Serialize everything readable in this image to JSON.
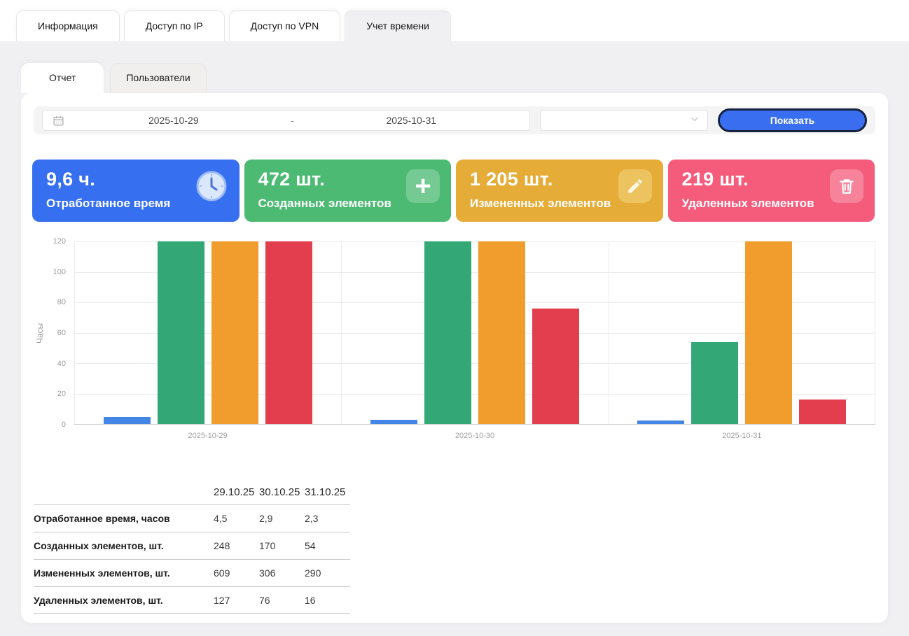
{
  "top_tabs": {
    "items": [
      {
        "label": "Информация",
        "active": false
      },
      {
        "label": "Доступ по IP",
        "active": false
      },
      {
        "label": "Доступ по VPN",
        "active": false
      },
      {
        "label": "Учет времени",
        "active": true
      }
    ]
  },
  "sub_tabs": {
    "items": [
      {
        "label": "Отчет",
        "active": true
      },
      {
        "label": "Пользователи",
        "active": false
      }
    ]
  },
  "filter": {
    "date_from": "2025-10-29",
    "separator": "-",
    "date_to": "2025-10-31",
    "select_value": "",
    "show_button": "Показать",
    "button_color": "#3a6ef0"
  },
  "cards": [
    {
      "value": "9,6 ч.",
      "label": "Отработанное время",
      "color": "#366ff0",
      "icon": "clock-icon",
      "icon_bg": ""
    },
    {
      "value": "472 шт.",
      "label": "Созданных элементов",
      "color": "#4dba74",
      "icon": "plus-icon",
      "icon_bg": "#74ca92"
    },
    {
      "value": "1 205 шт.",
      "label": "Измененных элементов",
      "color": "#e5ac37",
      "icon": "pencil-icon",
      "icon_bg": "#ecc35f"
    },
    {
      "value": "219 шт.",
      "label": "Удаленных элементов",
      "color": "#f55c7c",
      "icon": "trash-icon",
      "icon_bg": "#f7839b"
    }
  ],
  "chart_data": {
    "type": "bar",
    "ylabel": "Часы",
    "categories": [
      "2025-10-29",
      "2025-10-30",
      "2025-10-31"
    ],
    "series": [
      {
        "name": "Отработанное время, часов",
        "color": "#4486e8",
        "values": [
          4.5,
          2.9,
          2.3
        ]
      },
      {
        "name": "Созданных элементов, шт.",
        "color": "#33a876",
        "values": [
          248,
          170,
          54
        ]
      },
      {
        "name": "Измененных элементов, шт.",
        "color": "#f09d2d",
        "values": [
          609,
          306,
          290
        ]
      },
      {
        "name": "Удаленных элементов, шт.",
        "color": "#e23e4e",
        "values": [
          127,
          76,
          16
        ]
      }
    ],
    "ylim": [
      0,
      120
    ],
    "yticks": [
      0,
      20,
      40,
      60,
      80,
      100,
      120
    ],
    "grid": true,
    "legend": "none",
    "note": "bars are clipped at the y-axis max of 120"
  },
  "table": {
    "columns": [
      "",
      "29.10.25",
      "30.10.25",
      "31.10.25"
    ],
    "rows": [
      {
        "label": "Отработанное время, часов",
        "values": [
          "4,5",
          "2,9",
          "2,3"
        ]
      },
      {
        "label": "Созданных элементов, шт.",
        "values": [
          "248",
          "170",
          "54"
        ]
      },
      {
        "label": "Измененных элементов, шт.",
        "values": [
          "609",
          "306",
          "290"
        ]
      },
      {
        "label": "Удаленных элементов, шт.",
        "values": [
          "127",
          "76",
          "16"
        ]
      }
    ]
  }
}
